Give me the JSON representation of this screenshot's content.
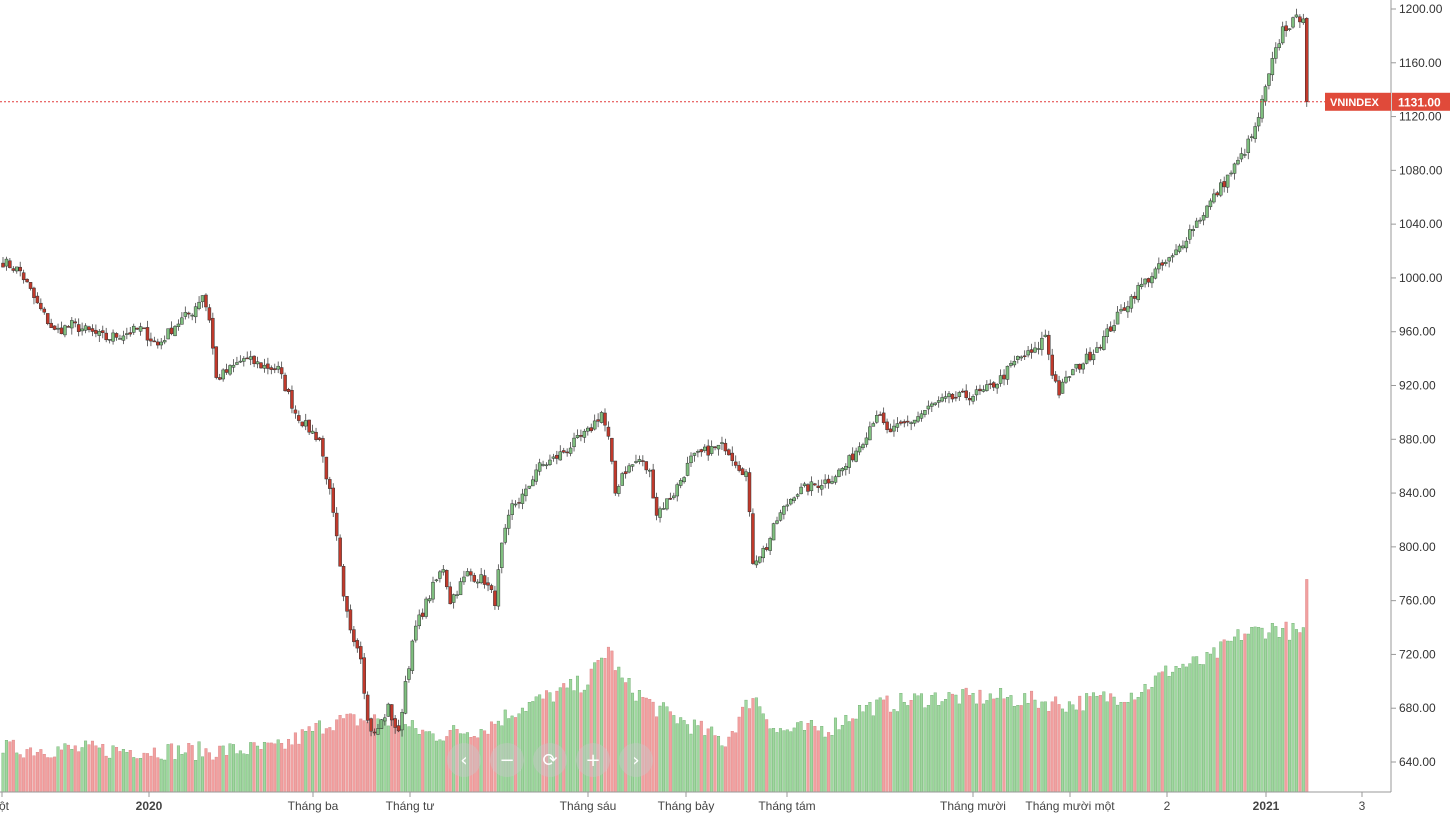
{
  "chart_data": {
    "type": "candlestick",
    "symbol": "VNINDEX",
    "last_price_label": "1131.00",
    "last_price": 1131,
    "y_ticks": [
      "640.00",
      "680.00",
      "720.00",
      "760.00",
      "800.00",
      "840.00",
      "880.00",
      "920.00",
      "960.00",
      "1000.00",
      "1040.00",
      "1080.00",
      "1120.00",
      "1160.00",
      "1200.00"
    ],
    "x_ticks": [
      {
        "label": "ột",
        "bold": false
      },
      {
        "label": "2020",
        "bold": true
      },
      {
        "label": "Tháng ba",
        "bold": false
      },
      {
        "label": "Tháng tư",
        "bold": false
      },
      {
        "label": "Tháng sáu",
        "bold": false
      },
      {
        "label": "Tháng bảy",
        "bold": false
      },
      {
        "label": "Tháng tám",
        "bold": false
      },
      {
        "label": "Tháng mười",
        "bold": false
      },
      {
        "label": "Tháng mười một",
        "bold": false
      },
      {
        "label": "2",
        "bold": false
      },
      {
        "label": "2021",
        "bold": true
      },
      {
        "label": "3",
        "bold": false
      }
    ],
    "price_keypoints": [
      [
        0,
        1012
      ],
      [
        5,
        1005
      ],
      [
        10,
        980
      ],
      [
        15,
        960
      ],
      [
        20,
        965
      ],
      [
        25,
        960
      ],
      [
        30,
        955
      ],
      [
        40,
        962
      ],
      [
        45,
        950
      ],
      [
        50,
        965
      ],
      [
        55,
        975
      ],
      [
        58,
        988
      ],
      [
        60,
        970
      ],
      [
        62,
        925
      ],
      [
        65,
        930
      ],
      [
        70,
        940
      ],
      [
        75,
        935
      ],
      [
        80,
        932
      ],
      [
        85,
        900
      ],
      [
        88,
        890
      ],
      [
        92,
        880
      ],
      [
        95,
        840
      ],
      [
        97,
        805
      ],
      [
        99,
        760
      ],
      [
        101,
        740
      ],
      [
        104,
        720
      ],
      [
        106,
        670
      ],
      [
        108,
        660
      ],
      [
        112,
        680
      ],
      [
        115,
        660
      ],
      [
        117,
        700
      ],
      [
        120,
        740
      ],
      [
        125,
        770
      ],
      [
        128,
        785
      ],
      [
        130,
        760
      ],
      [
        135,
        780
      ],
      [
        140,
        775
      ],
      [
        143,
        760
      ],
      [
        145,
        800
      ],
      [
        148,
        830
      ],
      [
        152,
        840
      ],
      [
        155,
        858
      ],
      [
        160,
        865
      ],
      [
        165,
        875
      ],
      [
        170,
        885
      ],
      [
        174,
        900
      ],
      [
        176,
        880
      ],
      [
        178,
        840
      ],
      [
        180,
        855
      ],
      [
        185,
        865
      ],
      [
        188,
        855
      ],
      [
        190,
        825
      ],
      [
        195,
        840
      ],
      [
        200,
        865
      ],
      [
        205,
        872
      ],
      [
        210,
        875
      ],
      [
        214,
        860
      ],
      [
        216,
        855
      ],
      [
        218,
        790
      ],
      [
        222,
        800
      ],
      [
        225,
        820
      ],
      [
        230,
        840
      ],
      [
        235,
        845
      ],
      [
        240,
        850
      ],
      [
        245,
        860
      ],
      [
        250,
        880
      ],
      [
        254,
        900
      ],
      [
        257,
        885
      ],
      [
        260,
        888
      ],
      [
        265,
        895
      ],
      [
        270,
        905
      ],
      [
        275,
        910
      ],
      [
        280,
        912
      ],
      [
        285,
        915
      ],
      [
        290,
        925
      ],
      [
        295,
        940
      ],
      [
        300,
        945
      ],
      [
        303,
        958
      ],
      [
        305,
        930
      ],
      [
        307,
        915
      ],
      [
        310,
        928
      ],
      [
        315,
        940
      ],
      [
        320,
        955
      ],
      [
        325,
        975
      ],
      [
        330,
        992
      ],
      [
        335,
        1005
      ],
      [
        340,
        1015
      ],
      [
        345,
        1035
      ],
      [
        348,
        1045
      ],
      [
        352,
        1060
      ],
      [
        356,
        1075
      ],
      [
        360,
        1090
      ],
      [
        364,
        1110
      ],
      [
        366,
        1130
      ],
      [
        369,
        1160
      ],
      [
        372,
        1185
      ],
      [
        375,
        1190
      ],
      [
        378,
        1196
      ],
      [
        379,
        1131
      ]
    ],
    "volume_keypoints": [
      [
        0,
        650
      ],
      [
        60,
        648
      ],
      [
        80,
        650
      ],
      [
        95,
        670
      ],
      [
        110,
        672
      ],
      [
        125,
        660
      ],
      [
        140,
        665
      ],
      [
        150,
        680
      ],
      [
        170,
        700
      ],
      [
        176,
        725
      ],
      [
        180,
        700
      ],
      [
        190,
        680
      ],
      [
        210,
        655
      ],
      [
        218,
        690
      ],
      [
        225,
        663
      ],
      [
        240,
        665
      ],
      [
        250,
        680
      ],
      [
        270,
        688
      ],
      [
        290,
        688
      ],
      [
        310,
        683
      ],
      [
        330,
        692
      ],
      [
        340,
        710
      ],
      [
        350,
        715
      ],
      [
        360,
        735
      ],
      [
        370,
        740
      ],
      [
        378,
        735
      ],
      [
        379,
        770
      ]
    ],
    "up_color": "#7fbf7f",
    "down_color": "#c0392b",
    "volume_up_color": "#9fd89f",
    "volume_down_color": "#f2a0a0"
  },
  "navigation": {
    "prev_icon": "‹",
    "zoom_out_icon": "−",
    "reset_icon": "⟳",
    "zoom_in_icon": "+",
    "next_icon": "›"
  }
}
